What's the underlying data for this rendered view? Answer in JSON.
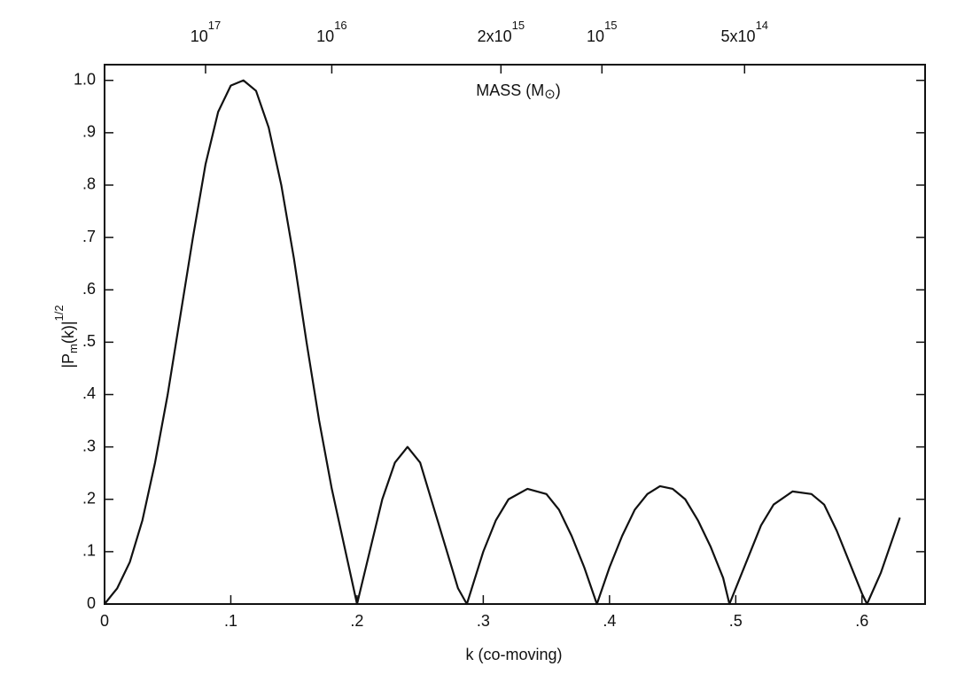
{
  "chart_data": {
    "type": "line",
    "x_label": "k (co-moving)",
    "y_label": {
      "main": "|P",
      "sub": "m",
      "rest": "(k)|",
      "sup": "1/2"
    },
    "top_axis_label": {
      "main": "MASS (M",
      "sym": "⊙",
      "end": ")"
    },
    "x": [
      0,
      0.01,
      0.02,
      0.03,
      0.04,
      0.05,
      0.06,
      0.07,
      0.08,
      0.09,
      0.1,
      0.11,
      0.12,
      0.13,
      0.14,
      0.15,
      0.16,
      0.17,
      0.18,
      0.19,
      0.2,
      0.21,
      0.22,
      0.23,
      0.24,
      0.25,
      0.26,
      0.27,
      0.28,
      0.287,
      0.3,
      0.31,
      0.32,
      0.335,
      0.35,
      0.36,
      0.37,
      0.38,
      0.39,
      0.4,
      0.41,
      0.42,
      0.43,
      0.44,
      0.45,
      0.46,
      0.47,
      0.48,
      0.49,
      0.495,
      0.51,
      0.52,
      0.53,
      0.545,
      0.56,
      0.57,
      0.58,
      0.59,
      0.6,
      0.604,
      0.615,
      0.63
    ],
    "values": [
      0,
      0.03,
      0.08,
      0.16,
      0.27,
      0.4,
      0.55,
      0.7,
      0.84,
      0.94,
      0.99,
      1.0,
      0.98,
      0.91,
      0.8,
      0.66,
      0.5,
      0.35,
      0.22,
      0.11,
      0,
      0.1,
      0.2,
      0.27,
      0.3,
      0.27,
      0.19,
      0.11,
      0.03,
      0,
      0.1,
      0.16,
      0.2,
      0.22,
      0.21,
      0.18,
      0.13,
      0.07,
      0,
      0.07,
      0.13,
      0.18,
      0.21,
      0.225,
      0.22,
      0.2,
      0.16,
      0.11,
      0.05,
      0,
      0.09,
      0.15,
      0.19,
      0.215,
      0.21,
      0.19,
      0.14,
      0.08,
      0.02,
      0,
      0.06,
      0.165
    ],
    "color": "#111111",
    "xlim": [
      0,
      0.65
    ],
    "ylim": [
      0,
      1.03
    ],
    "xticks": [
      0,
      {
        "value": 0.1,
        "label": ".1"
      },
      {
        "value": 0.2,
        "label": ".2"
      },
      {
        "value": 0.3,
        "label": ".3"
      },
      {
        "value": 0.4,
        "label": ".4"
      },
      {
        "value": 0.5,
        "label": ".5"
      },
      {
        "value": 0.6,
        "label": ".6"
      }
    ],
    "yticks": [
      0,
      {
        "value": 0.1,
        "label": ".1"
      },
      {
        "value": 0.2,
        "label": ".2"
      },
      {
        "value": 0.3,
        "label": ".3"
      },
      {
        "value": 0.4,
        "label": ".4"
      },
      {
        "value": 0.5,
        "label": ".5"
      },
      {
        "value": 0.6,
        "label": ".6"
      },
      {
        "value": 0.7,
        "label": ".7"
      },
      {
        "value": 0.8,
        "label": ".8"
      },
      {
        "value": 0.9,
        "label": ".9"
      },
      {
        "value": 1.0,
        "label": "1.0"
      }
    ],
    "top_ticks": [
      {
        "value": 0.08,
        "label": "10",
        "sup": "17"
      },
      {
        "value": 0.18,
        "label": "10",
        "sup": "16"
      },
      {
        "value": 0.314,
        "label": "2x10",
        "sup": "15"
      },
      {
        "value": 0.394,
        "label": "10",
        "sup": "15"
      },
      {
        "value": 0.507,
        "label": "5x10",
        "sup": "14"
      }
    ],
    "grid": false
  }
}
